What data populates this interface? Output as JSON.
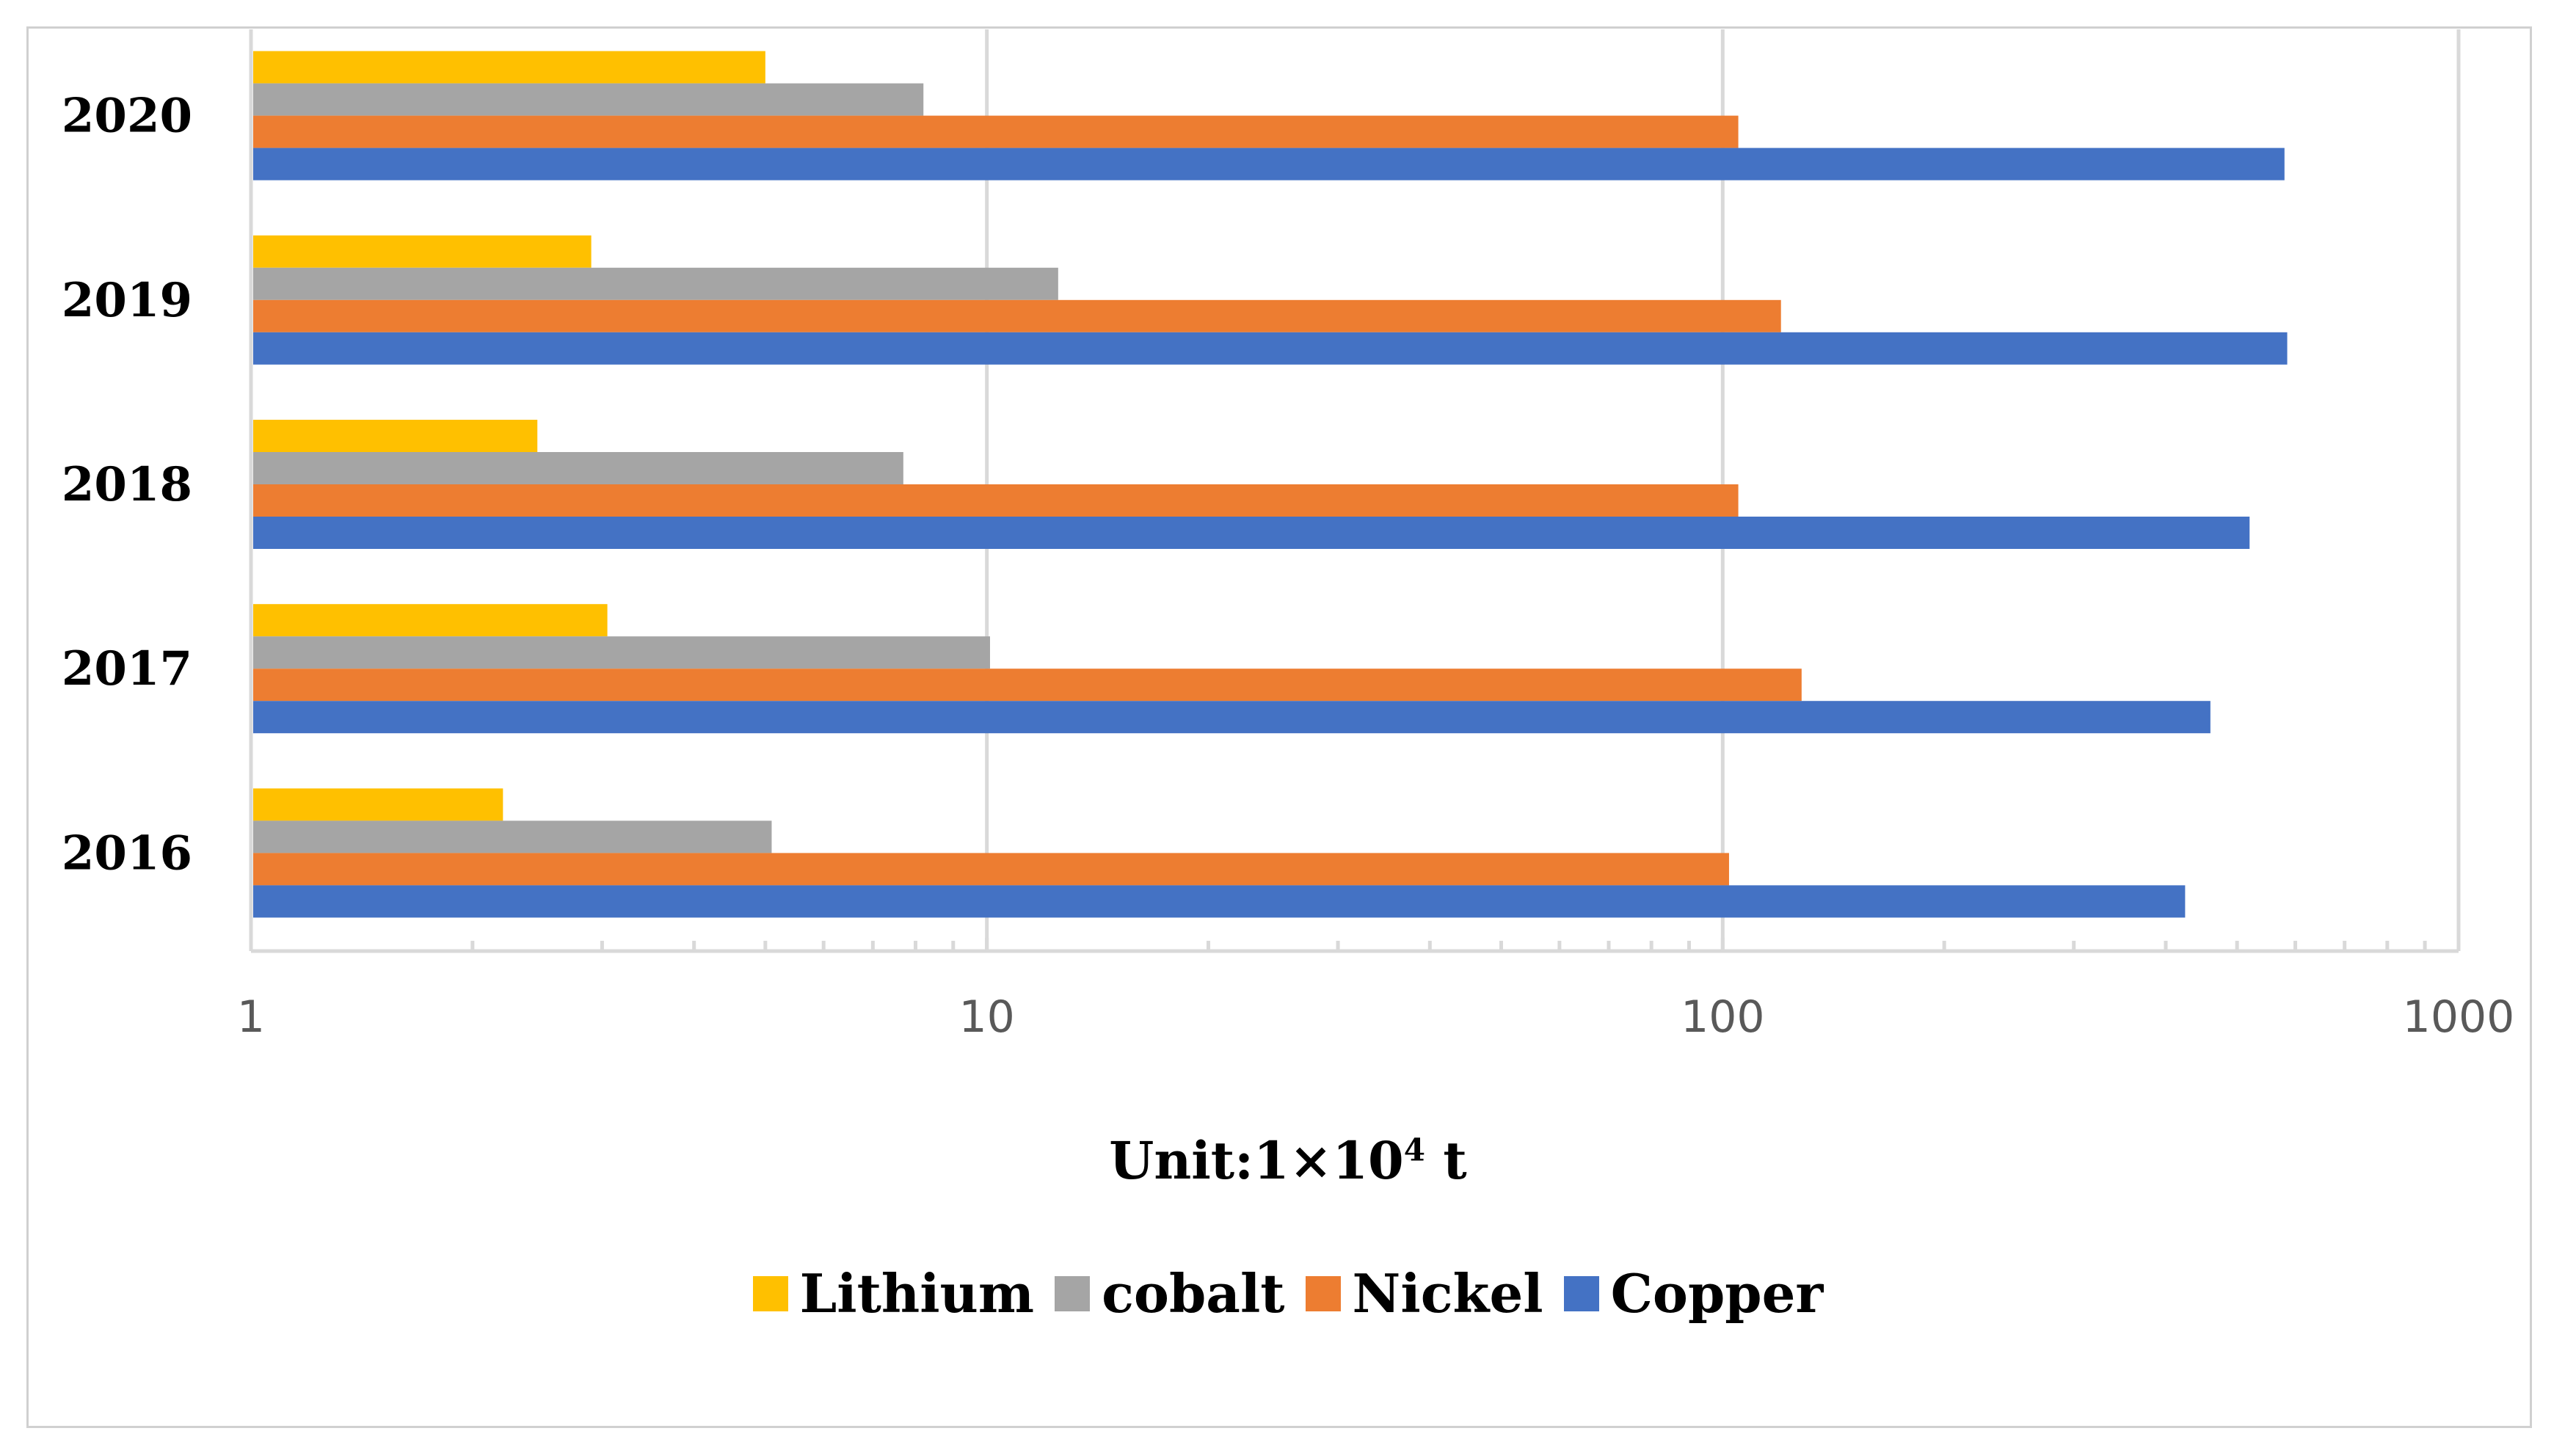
{
  "chart_data": {
    "type": "bar",
    "orientation": "horizontal",
    "categories": [
      "2020",
      "2019",
      "2018",
      "2017",
      "2016"
    ],
    "series": [
      {
        "name": "Lithium",
        "color": "#FFC000",
        "values": [
          5.0,
          2.9,
          2.45,
          3.05,
          2.2
        ]
      },
      {
        "name": "cobalt",
        "color": "#A5A5A5",
        "values": [
          8.2,
          12.5,
          7.7,
          10.1,
          5.1
        ]
      },
      {
        "name": "Nickel",
        "color": "#ED7D31",
        "values": [
          105,
          120,
          105,
          128,
          102
        ]
      },
      {
        "name": "Copper",
        "color": "#4472C4",
        "values": [
          580,
          585,
          520,
          460,
          425
        ]
      }
    ],
    "xscale": "log",
    "xlim": [
      1,
      1000
    ],
    "xticks": [
      "1",
      "10",
      "100",
      "1000"
    ],
    "xlabel_main": "Unit:1×10",
    "xlabel_exp": "4",
    "xlabel_tail": " t",
    "grid": true,
    "legend_position": "bottom",
    "legend_order": [
      "Lithium",
      "cobalt",
      "Nickel",
      "Copper"
    ]
  }
}
